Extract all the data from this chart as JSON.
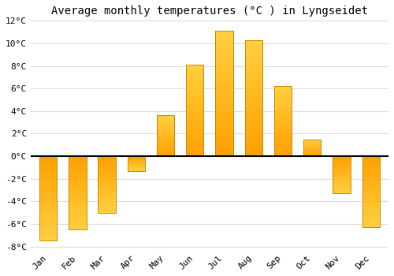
{
  "title": "Average monthly temperatures (°C ) in Lyngseidet",
  "months": [
    "Jan",
    "Feb",
    "Mar",
    "Apr",
    "May",
    "Jun",
    "Jul",
    "Aug",
    "Sep",
    "Oct",
    "Nov",
    "Dec"
  ],
  "values": [
    -7.5,
    -6.5,
    -5.0,
    -1.3,
    3.6,
    8.1,
    11.1,
    10.3,
    6.2,
    1.5,
    -3.3,
    -6.3
  ],
  "bar_color_top": "#FFD040",
  "bar_color_bottom": "#FFA000",
  "bar_edge_color": "#CC8800",
  "ylim": [
    -8,
    12
  ],
  "yticks": [
    -8,
    -6,
    -4,
    -2,
    0,
    2,
    4,
    6,
    8,
    10,
    12
  ],
  "background_color": "#FFFFFF",
  "grid_color": "#DDDDDD",
  "zero_line_color": "#000000",
  "title_fontsize": 10,
  "tick_fontsize": 8,
  "bar_width": 0.6
}
